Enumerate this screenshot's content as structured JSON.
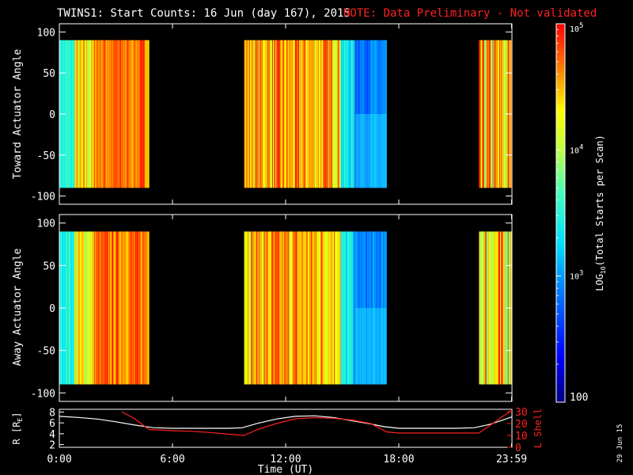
{
  "title": "TWINS1: Start Counts: 16 Jun (day 167), 2015",
  "note": "NOTE: Data Preliminary - Not validated",
  "date_stamp": "29 Jun 15",
  "colors": {
    "note": "#ff2020",
    "lshell": "#ff2020",
    "r_line": "#ffffff",
    "axes": "#ffffff",
    "background": "#000000"
  },
  "colorbar": {
    "label_main": "LOG",
    "label_sub": "10",
    "label_rest": "(Total Starts per Scan)",
    "ticks": [
      {
        "text": "10",
        "exp": "5",
        "value": 100000
      },
      {
        "text": "10",
        "exp": "4",
        "value": 10000
      },
      {
        "text": "10",
        "exp": "3",
        "value": 1000
      },
      {
        "text": "100",
        "exp": "",
        "value": 100
      }
    ],
    "range": [
      100,
      100000
    ]
  },
  "chart_data": [
    {
      "type": "heatmap",
      "ylabel": "Toward Actuator Angle",
      "yticks": [
        "100",
        "50",
        "0",
        "-50",
        "-100"
      ],
      "ytick_values": [
        100,
        50,
        0,
        -50,
        -100
      ],
      "ylim": [
        -110,
        110
      ],
      "xlim": [
        0,
        24
      ],
      "data_y_range": [
        -90,
        90
      ],
      "segments": [
        {
          "start": 0.0,
          "end": 4.75,
          "profile": "early"
        },
        {
          "start": 9.8,
          "end": 17.35,
          "profile": "midday"
        },
        {
          "start": 22.25,
          "end": 24.0,
          "profile": "late"
        }
      ]
    },
    {
      "type": "heatmap",
      "ylabel": "Away Actuator Angle",
      "yticks": [
        "100",
        "50",
        "0",
        "-50",
        "-100"
      ],
      "ytick_values": [
        100,
        50,
        0,
        -50,
        -100
      ],
      "ylim": [
        -110,
        110
      ],
      "xlim": [
        0,
        24
      ],
      "data_y_range": [
        -90,
        90
      ],
      "segments": [
        {
          "start": 0.0,
          "end": 4.75,
          "profile": "early"
        },
        {
          "start": 9.8,
          "end": 17.35,
          "profile": "midday"
        },
        {
          "start": 22.25,
          "end": 24.0,
          "profile": "late"
        }
      ]
    },
    {
      "type": "line",
      "xlabel": "Time (UT)",
      "ylabel_left": "R [R",
      "ylabel_left_sub": "E",
      "ylabel_left_end": "]",
      "ylabel_right": "L Shell",
      "xticks": [
        "0:00",
        "6:00",
        "12:00",
        "18:00",
        "23:59"
      ],
      "xtick_values": [
        0,
        6,
        12,
        18,
        23.98
      ],
      "yticks_left": [
        "8",
        "6",
        "4",
        "2"
      ],
      "yticks_left_values": [
        8,
        6,
        4,
        2
      ],
      "yticks_right": [
        "30",
        "20",
        "10",
        "0"
      ],
      "yticks_right_values": [
        30,
        20,
        10,
        0
      ],
      "ylim_left": [
        1.5,
        8.5
      ],
      "ylim_right": [
        0,
        32
      ],
      "series": [
        {
          "name": "R",
          "axis": "left",
          "x": [
            0,
            1,
            2,
            3,
            4,
            5,
            6,
            7,
            8,
            9,
            9.7,
            10.5,
            11.5,
            12.5,
            13.5,
            14.5,
            15.5,
            16.5,
            17.2,
            18,
            19,
            20,
            21,
            22,
            22.8,
            23.5,
            24
          ],
          "y": [
            7.2,
            7.0,
            6.7,
            6.2,
            5.6,
            5.1,
            5.0,
            5.0,
            5.0,
            5.0,
            5.1,
            5.9,
            6.7,
            7.2,
            7.3,
            7.0,
            6.4,
            5.8,
            5.3,
            5.0,
            5.0,
            5.0,
            5.0,
            5.1,
            5.7,
            6.5,
            7.1
          ]
        },
        {
          "name": "L Shell",
          "axis": "right",
          "x": [
            3.3,
            4.0,
            4.75,
            6,
            7,
            8,
            9,
            9.8,
            10.5,
            11.5,
            12.5,
            13.5,
            14.5,
            15.5,
            16.5,
            17.35,
            18,
            19,
            20,
            21,
            22.25,
            22.8,
            23.5,
            24
          ],
          "y": [
            30,
            24,
            15,
            14,
            13.5,
            12.5,
            11,
            10,
            15,
            20,
            24,
            25,
            24.5,
            23,
            20,
            13,
            12,
            12,
            12,
            12,
            12,
            18,
            26,
            31
          ]
        }
      ]
    }
  ]
}
